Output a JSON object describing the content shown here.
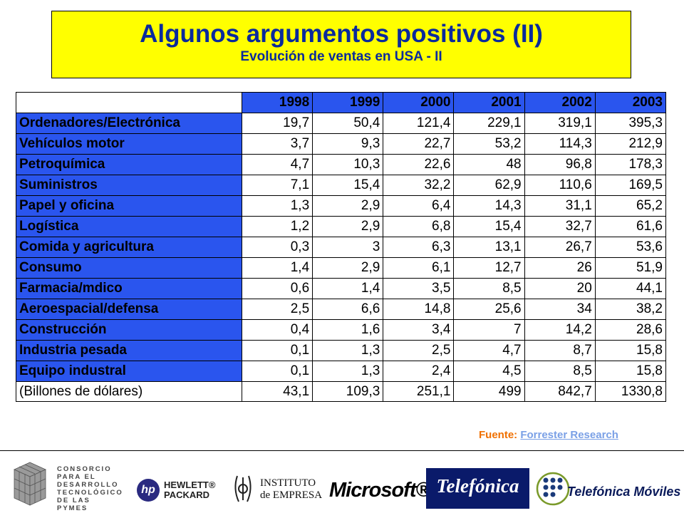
{
  "title": "Algunos argumentos positivos (II)",
  "subtitle": "Evolución de ventas en USA - II",
  "table": {
    "years": [
      "1998",
      "1999",
      "2000",
      "2001",
      "2002",
      "2003"
    ],
    "rows": [
      {
        "label": "Ordenadores/Electrónica",
        "values": [
          "19,7",
          "50,4",
          "121,4",
          "229,1",
          "319,1",
          "395,3"
        ]
      },
      {
        "label": "Vehículos motor",
        "values": [
          "3,7",
          "9,3",
          "22,7",
          "53,2",
          "114,3",
          "212,9"
        ]
      },
      {
        "label": "Petroquímica",
        "values": [
          "4,7",
          "10,3",
          "22,6",
          "48",
          "96,8",
          "178,3"
        ]
      },
      {
        "label": "Suministros",
        "values": [
          "7,1",
          "15,4",
          "32,2",
          "62,9",
          "110,6",
          "169,5"
        ]
      },
      {
        "label": "Papel y oficina",
        "values": [
          "1,3",
          "2,9",
          "6,4",
          "14,3",
          "31,1",
          "65,2"
        ]
      },
      {
        "label": "Logística",
        "values": [
          "1,2",
          "2,9",
          "6,8",
          "15,4",
          "32,7",
          "61,6"
        ]
      },
      {
        "label": "Comida y agricultura",
        "values": [
          "0,3",
          "3",
          "6,3",
          "13,1",
          "26,7",
          "53,6"
        ]
      },
      {
        "label": "Consumo",
        "values": [
          "1,4",
          "2,9",
          "6,1",
          "12,7",
          "26",
          "51,9"
        ]
      },
      {
        "label": "Farmacia/mdico",
        "values": [
          "0,6",
          "1,4",
          "3,5",
          "8,5",
          "20",
          "44,1"
        ]
      },
      {
        "label": "Aeroespacial/defensa",
        "values": [
          "2,5",
          "6,6",
          "14,8",
          "25,6",
          "34",
          "38,2"
        ]
      },
      {
        "label": "Construcción",
        "values": [
          "0,4",
          "1,6",
          "3,4",
          "7",
          "14,2",
          "28,6"
        ]
      },
      {
        "label": "Industria pesada",
        "values": [
          "0,1",
          "1,3",
          "2,5",
          "4,7",
          "8,7",
          "15,8"
        ]
      },
      {
        "label": "Equipo industral",
        "values": [
          "0,1",
          "1,3",
          "2,4",
          "4,5",
          "8,5",
          "15,8"
        ]
      }
    ],
    "total": {
      "label": "(Billones de dólares)",
      "values": [
        "43,1",
        "109,3",
        "251,1",
        "499",
        "842,7",
        "1330,8"
      ]
    }
  },
  "source": {
    "label": "Fuente:",
    "link": "Forrester Research"
  },
  "logos": {
    "consorcio": [
      "CONSORCIO",
      "PARA EL",
      "DESARROLLO",
      "TECNOLÓGICO",
      "DE LAS PYMES"
    ],
    "hp": {
      "mark": "hp",
      "line1": "HEWLETT®",
      "line2": "PACKARD"
    },
    "ie": {
      "line1": "INSTITUTO",
      "line2": "de EMPRESA"
    },
    "microsoft": "Microsoft®",
    "telefonica": "Telefónica",
    "telefonica_moviles": "Telefónica Móviles"
  },
  "colors": {
    "title_bg": "#ffff00",
    "title_text": "#0a2a9c",
    "table_header": "#2a55ee",
    "source_label": "#f07000"
  }
}
